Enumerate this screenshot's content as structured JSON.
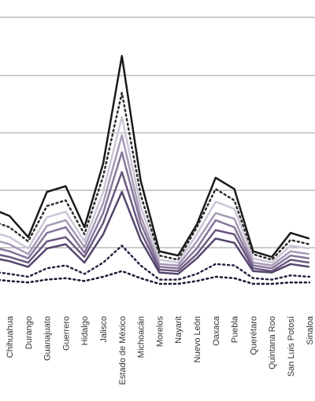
{
  "chart_data": {
    "type": "line",
    "title": "",
    "xlabel": "",
    "ylabel": "",
    "grid": true,
    "categories": [
      "Chihuahua",
      "Durango",
      "Guanajuato",
      "Guerrero",
      "Hidalgo",
      "Jalisco",
      "Estado de México",
      "Michoacán",
      "Morelos",
      "Nayarit",
      "Nuevo León",
      "Oaxaca",
      "Puebla",
      "Querétaro",
      "Quintana Roo",
      "San Luis Potosí",
      "Sinaloa"
    ],
    "series": [
      {
        "style": "solid",
        "color": "#1a1a1a",
        "values": [
          63,
          48,
          80,
          84,
          55,
          100,
          176,
          88,
          38,
          35,
          57,
          90,
          82,
          38,
          34,
          51,
          47
        ]
      },
      {
        "style": "dotted",
        "color": "#2e2e2e",
        "values": [
          55,
          45,
          70,
          74,
          50,
          91,
          150,
          78,
          35,
          32,
          55,
          82,
          74,
          36,
          32,
          46,
          43
        ]
      },
      {
        "style": "solid",
        "color": "#cdc6d7",
        "values": [
          48,
          40,
          62,
          66,
          45,
          80,
          133,
          70,
          32,
          30,
          50,
          73,
          68,
          33,
          30,
          42,
          40
        ]
      },
      {
        "style": "solid",
        "color": "#a79ab6",
        "values": [
          43,
          36,
          56,
          60,
          41,
          72,
          120,
          63,
          29,
          28,
          45,
          65,
          61,
          30,
          28,
          38,
          36
        ]
      },
      {
        "style": "solid",
        "color": "#86769a",
        "values": [
          38,
          33,
          51,
          55,
          37,
          65,
          108,
          58,
          27,
          26,
          40,
          60,
          55,
          28,
          26,
          35,
          33
        ]
      },
      {
        "style": "solid",
        "color": "#6a577f",
        "values": [
          34,
          30,
          45,
          48,
          34,
          58,
          94,
          52,
          25,
          24,
          36,
          53,
          50,
          26,
          24,
          32,
          30
        ]
      },
      {
        "style": "solid",
        "color": "#55456c",
        "values": [
          31,
          27,
          40,
          43,
          30,
          50,
          80,
          46,
          23,
          22,
          33,
          47,
          44,
          24,
          23,
          29,
          27
        ]
      },
      {
        "style": "dotted",
        "color": "#2b2140",
        "values": [
          22,
          20,
          26,
          28,
          22,
          30,
          42,
          28,
          18,
          18,
          22,
          29,
          28,
          19,
          18,
          21,
          20
        ]
      },
      {
        "style": "dotted",
        "color": "#1c1630",
        "values": [
          17,
          16,
          18,
          19,
          17,
          20,
          24,
          19,
          15,
          15,
          17,
          20,
          19,
          15,
          15,
          16,
          16
        ]
      }
    ]
  }
}
